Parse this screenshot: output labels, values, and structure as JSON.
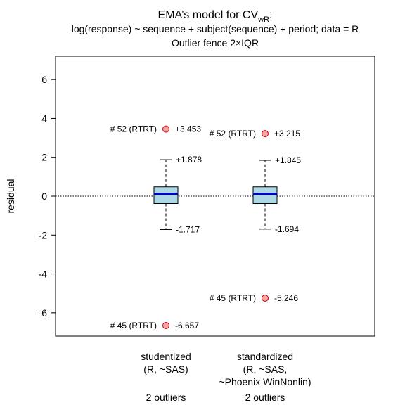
{
  "title": {
    "main": "EMA’s model for CV",
    "main_sub": "wR",
    "main_tail": ":",
    "line2": "log(response) ~ sequence + subject(sequence) + period; data = R",
    "line3": "Outlier fence 2×IQR"
  },
  "colors": {
    "box_fill": "#add8e6",
    "median": "#0000cd",
    "outlier_fill": "#f4a6a6",
    "outlier_stroke": "#cc0000"
  },
  "chart_data": {
    "type": "boxplot",
    "ylabel": "residual",
    "ylim": [
      -7.2,
      7.2
    ],
    "yticks": [
      6,
      4,
      2,
      0,
      -2,
      -4,
      -6
    ],
    "ytick_labels": [
      "6",
      "4",
      "2",
      "0",
      "-2",
      "-4",
      "-6"
    ],
    "reference_line": 0,
    "boxes": [
      {
        "category_lines": [
          "studentized",
          "(R, ~SAS)",
          "",
          "2 outliers"
        ],
        "whisker_low": -1.717,
        "q1": -0.38,
        "median": 0.12,
        "q3": 0.48,
        "whisker_high": 1.878,
        "whisker_high_label": "+1.878",
        "whisker_low_label": "-1.717",
        "outliers": [
          {
            "value": 3.453,
            "id_label": "# 52 (RTRT)",
            "value_label": "+3.453"
          },
          {
            "value": -6.657,
            "id_label": "# 45 (RTRT)",
            "value_label": "-6.657"
          }
        ]
      },
      {
        "category_lines": [
          "standardized",
          "(R, ~SAS,",
          "~Phoenix WinNonlin)",
          "2 outliers"
        ],
        "whisker_low": -1.694,
        "q1": -0.38,
        "median": 0.12,
        "q3": 0.48,
        "whisker_high": 1.845,
        "whisker_high_label": "+1.845",
        "whisker_low_label": "-1.694",
        "outliers": [
          {
            "value": 3.215,
            "id_label": "# 52 (RTRT)",
            "value_label": "+3.215"
          },
          {
            "value": -5.246,
            "id_label": "# 45 (RTRT)",
            "value_label": "-5.246"
          }
        ]
      }
    ]
  }
}
